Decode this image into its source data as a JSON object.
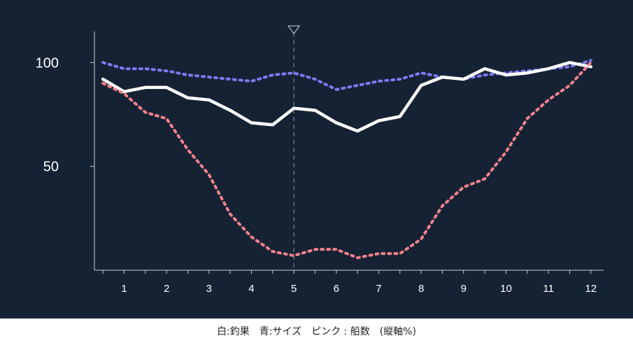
{
  "chart_data": {
    "type": "line",
    "x": [
      0.5,
      1,
      1.5,
      2,
      2.5,
      3,
      3.5,
      4,
      4.5,
      5,
      5.5,
      6,
      6.5,
      7,
      7.5,
      8,
      8.5,
      9,
      9.5,
      10,
      10.5,
      11,
      11.5,
      12
    ],
    "xticks": [
      1,
      2,
      3,
      4,
      5,
      6,
      7,
      8,
      9,
      10,
      11,
      12
    ],
    "yticks": [
      50,
      100
    ],
    "xlim": [
      0.3,
      12.3
    ],
    "ylim": [
      0,
      120
    ],
    "marker_x": 5,
    "grid": false,
    "series": [
      {
        "key": "size",
        "color": "#7b7bf0",
        "style": "dashed",
        "values": [
          100,
          97,
          97,
          96,
          94,
          93,
          92,
          91,
          94,
          95,
          92,
          87,
          89,
          91,
          92,
          95,
          93,
          92,
          94,
          95,
          96,
          97,
          98,
          101
        ]
      },
      {
        "key": "catch",
        "color": "#ffffff",
        "style": "solid",
        "values": [
          92,
          86,
          88,
          88,
          83,
          82,
          77,
          71,
          70,
          78,
          77,
          71,
          67,
          72,
          74,
          89,
          93,
          92,
          97,
          94,
          95,
          97,
          100,
          98
        ]
      },
      {
        "key": "boats",
        "color": "#f2828a",
        "style": "dashed",
        "values": [
          90,
          85,
          76,
          73,
          58,
          46,
          27,
          16,
          9,
          7,
          10,
          10,
          6,
          8,
          8,
          15,
          31,
          40,
          44,
          57,
          73,
          82,
          89,
          100
        ]
      }
    ]
  },
  "caption": "白:釣果　青:サイズ　ピンク : 船数　(縦軸%)"
}
